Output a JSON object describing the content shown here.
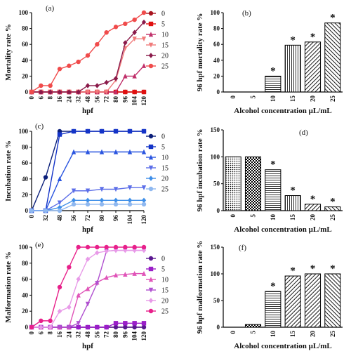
{
  "chart_data": [
    {
      "panel": "(a)",
      "type": "line",
      "xlabel": "hpf",
      "ylabel": "Mortality rate %",
      "categories": [
        "0",
        "6",
        "8",
        "16",
        "24",
        "32",
        "48",
        "56",
        "72",
        "80",
        "96",
        "104",
        "120"
      ],
      "ylim": [
        0,
        100
      ],
      "yticks": [
        0,
        20,
        40,
        60,
        80,
        100
      ],
      "legend": "right",
      "series": [
        {
          "name": "0",
          "color": "#a8141e",
          "marker": "circle",
          "values": [
            0,
            0,
            0,
            0,
            0,
            0,
            0,
            0,
            0,
            0,
            0,
            0,
            0
          ]
        },
        {
          "name": "5",
          "color": "#e01010",
          "marker": "square",
          "values": [
            0,
            0,
            0,
            0,
            0,
            0,
            0,
            0,
            0,
            0,
            0,
            0,
            0
          ]
        },
        {
          "name": "10",
          "color": "#c0306a",
          "marker": "triangle",
          "values": [
            0,
            0,
            0,
            0,
            0,
            0,
            0,
            0,
            0,
            0,
            20,
            20,
            33
          ]
        },
        {
          "name": "15",
          "color": "#f07a7a",
          "marker": "tridown",
          "values": [
            0,
            0,
            0,
            0,
            0,
            0,
            0,
            0,
            0,
            15,
            55,
            67,
            67
          ]
        },
        {
          "name": "20",
          "color": "#8a1a4a",
          "marker": "diamond",
          "values": [
            0,
            0,
            0,
            0,
            0,
            0,
            8,
            8,
            12,
            17,
            62,
            75,
            88
          ]
        },
        {
          "name": "25",
          "color": "#f04b4b",
          "marker": "circle",
          "values": [
            0,
            8,
            8,
            29,
            33,
            38,
            46,
            60,
            75,
            82,
            86,
            91,
            100
          ]
        }
      ]
    },
    {
      "panel": "(b)",
      "type": "bar",
      "xlabel": "Alcohol concentration μL/mL",
      "ylabel": "96 hpf mortality rate %",
      "categories": [
        "0",
        "5",
        "10",
        "15",
        "20",
        "25"
      ],
      "values": [
        0,
        0,
        20,
        59,
        63,
        87
      ],
      "ylim": [
        0,
        100
      ],
      "yticks": [
        0,
        20,
        40,
        60,
        80,
        100
      ],
      "labels": [
        "",
        "",
        "*",
        "*",
        "*",
        "*"
      ],
      "patterns": [
        "none",
        "none",
        "hlines",
        "vlines",
        "dlines",
        "diag2"
      ]
    },
    {
      "panel": "(c)",
      "type": "line",
      "xlabel": "hpf",
      "ylabel": "Incubation rate %",
      "categories": [
        "0",
        "32",
        "48",
        "56",
        "72",
        "80",
        "96",
        "104",
        "120"
      ],
      "ylim": [
        0,
        100
      ],
      "yticks": [
        0,
        20,
        40,
        60,
        80,
        100
      ],
      "legend": "right",
      "series": [
        {
          "name": "0",
          "color": "#0b1f7a",
          "marker": "circle",
          "values": [
            0,
            42,
            100,
            100,
            100,
            100,
            100,
            100,
            100
          ]
        },
        {
          "name": "5",
          "color": "#1434c8",
          "marker": "square",
          "values": [
            0,
            0,
            96,
            100,
            100,
            100,
            100,
            100,
            100
          ]
        },
        {
          "name": "10",
          "color": "#2a55e0",
          "marker": "triangle",
          "values": [
            0,
            0,
            40,
            74,
            74,
            74,
            74,
            74,
            74
          ]
        },
        {
          "name": "15",
          "color": "#5c6ee8",
          "marker": "tridown",
          "values": [
            0,
            0,
            10,
            25,
            25,
            27,
            27,
            29,
            29
          ]
        },
        {
          "name": "20",
          "color": "#3d8ee8",
          "marker": "diamond",
          "values": [
            0,
            0,
            4,
            13,
            13,
            13,
            13,
            13,
            13
          ]
        },
        {
          "name": "25",
          "color": "#8fb8f0",
          "marker": "circle",
          "values": [
            0,
            0,
            0,
            8,
            8,
            8,
            8,
            8,
            8
          ]
        }
      ]
    },
    {
      "panel": "(d)",
      "type": "bar",
      "xlabel": "Alcohol concentration μL/mL",
      "ylabel": "96 hpf incubation rate %",
      "categories": [
        "0",
        "5",
        "10",
        "15",
        "20",
        "25"
      ],
      "values": [
        100,
        100,
        76,
        28,
        12,
        7
      ],
      "ylim": [
        0,
        150
      ],
      "yticks": [
        0,
        50,
        100,
        150
      ],
      "labels": [
        "",
        "",
        "*",
        "*",
        "*",
        "*"
      ],
      "patterns": [
        "dots",
        "checker",
        "hlines",
        "vlines",
        "dlines",
        "diag2"
      ]
    },
    {
      "panel": "(e)",
      "type": "line",
      "xlabel": "hpf",
      "ylabel": "Malformation rate %",
      "categories": [
        "0",
        "6",
        "8",
        "16",
        "24",
        "32",
        "48",
        "56",
        "72",
        "80",
        "96",
        "104",
        "120"
      ],
      "ylim": [
        0,
        100
      ],
      "yticks": [
        0,
        20,
        40,
        60,
        80,
        100
      ],
      "legend": "right",
      "series": [
        {
          "name": "0",
          "color": "#5a1890",
          "marker": "circle",
          "values": [
            0,
            0,
            0,
            0,
            0,
            0,
            0,
            0,
            0,
            0,
            0,
            0,
            0
          ]
        },
        {
          "name": "5",
          "color": "#9a1ec8",
          "marker": "square",
          "values": [
            0,
            0,
            0,
            0,
            0,
            0,
            0,
            0,
            0,
            5,
            5,
            5,
            5
          ]
        },
        {
          "name": "10",
          "color": "#e054b8",
          "marker": "triangle",
          "values": [
            0,
            0,
            0,
            0,
            0,
            40,
            48,
            56,
            62,
            65,
            66,
            67,
            67
          ]
        },
        {
          "name": "15",
          "color": "#b050d0",
          "marker": "tridown",
          "values": [
            0,
            0,
            0,
            0,
            0,
            5,
            29,
            55,
            95,
            96,
            96,
            96,
            96
          ]
        },
        {
          "name": "20",
          "color": "#e89ae8",
          "marker": "diamond",
          "values": [
            0,
            0,
            0,
            20,
            25,
            60,
            85,
            93,
            95,
            96,
            96,
            96,
            96
          ]
        },
        {
          "name": "25",
          "color": "#e8208a",
          "marker": "circle",
          "values": [
            0,
            8,
            8,
            50,
            75,
            100,
            100,
            100,
            100,
            100,
            100,
            100,
            100
          ]
        }
      ]
    },
    {
      "panel": "(f)",
      "type": "bar",
      "xlabel": "Alcohol concentration μL/mL",
      "ylabel": "96 hpf malformation rate %",
      "categories": [
        "0",
        "5",
        "10",
        "15",
        "20",
        "25"
      ],
      "values": [
        0,
        5,
        67,
        96,
        100,
        100
      ],
      "ylim": [
        0,
        150
      ],
      "yticks": [
        0,
        50,
        100,
        150
      ],
      "labels": [
        "",
        "",
        "*",
        "*",
        "*",
        "*"
      ],
      "patterns": [
        "none",
        "checker",
        "hlines",
        "dlines",
        "dlines",
        "diag2"
      ]
    }
  ]
}
